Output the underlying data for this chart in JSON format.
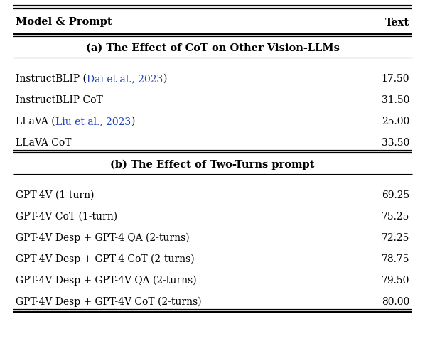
{
  "header": [
    "Model & Prompt",
    "Text"
  ],
  "section_a_title": "(a) The Effect of CoT on Other Vision-LLMs",
  "section_a_rows": [
    {
      "label_parts": [
        {
          "text": "InstructBLIP (",
          "color": "#000000"
        },
        {
          "text": "Dai et al., 2023",
          "color": "#2244bb"
        },
        {
          "text": ")",
          "color": "#000000"
        }
      ],
      "value": "17.50"
    },
    {
      "label_parts": [
        {
          "text": "InstructBLIP CoT",
          "color": "#000000"
        }
      ],
      "value": "31.50"
    },
    {
      "label_parts": [
        {
          "text": "LLaVA (",
          "color": "#000000"
        },
        {
          "text": "Liu et al., 2023",
          "color": "#2244bb"
        },
        {
          "text": ")",
          "color": "#000000"
        }
      ],
      "value": "25.00"
    },
    {
      "label_parts": [
        {
          "text": "LLaVA CoT",
          "color": "#000000"
        }
      ],
      "value": "33.50"
    }
  ],
  "section_b_title": "(b) The Effect of Two-Turns prompt",
  "section_b_rows": [
    {
      "label": "GPT-4V (1-turn)",
      "value": "69.25"
    },
    {
      "label": "GPT-4V CoT (1-turn)",
      "value": "75.25"
    },
    {
      "label": "GPT-4V Desp + GPT-4 QA (2-turns)",
      "value": "72.25"
    },
    {
      "label": "GPT-4V Desp + GPT-4 CoT (2-turns)",
      "value": "78.75"
    },
    {
      "label": "GPT-4V Desp + GPT-4V QA (2-turns)",
      "value": "79.50"
    },
    {
      "label": "GPT-4V Desp + GPT-4V CoT (2-turns)",
      "value": "80.00"
    }
  ],
  "bg_color": "#ffffff",
  "text_color": "#000000",
  "header_fontsize": 10.5,
  "body_fontsize": 10.0,
  "section_title_fontsize": 10.5
}
